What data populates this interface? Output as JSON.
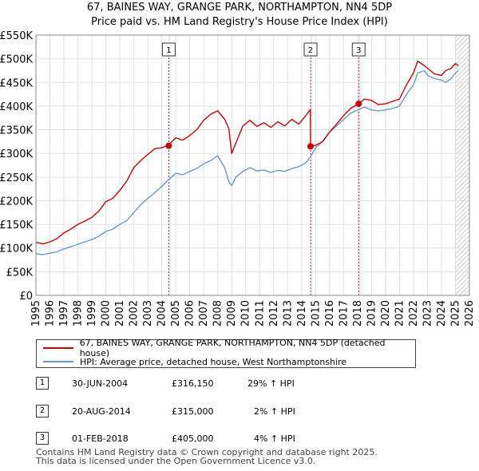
{
  "title_line1": "67, BAINES WAY, GRANGE PARK, NORTHAMPTON, NN4 5DP",
  "title_line2": "Price paid vs. HM Land Registry's House Price Index (HPI)",
  "colors": {
    "property": "#cc0000",
    "hpi": "#6699cc",
    "marker_line": "#cc0000",
    "shade": "#dde6f4",
    "hatch": "#bbbbbb"
  },
  "legend": {
    "property_label": "67, BAINES WAY, GRANGE PARK, NORTHAMPTON, NN4 5DP (detached house)",
    "hpi_label": "HPI: Average price, detached house, West Northamptonshire"
  },
  "sales": [
    {
      "num": "1",
      "date": "30-JUN-2004",
      "price": "£316,150",
      "hpi": "29% ↑ HPI"
    },
    {
      "num": "2",
      "date": "20-AUG-2014",
      "price": "£315,000",
      "hpi": "2% ↑ HPI"
    },
    {
      "num": "3",
      "date": "01-FEB-2018",
      "price": "£405,000",
      "hpi": "4% ↑ HPI"
    }
  ],
  "footer_line1": "Contains HM Land Registry data © Crown copyright and database right 2025.",
  "footer_line2": "This data is licensed under the Open Government Licence v3.0.",
  "chart_data": {
    "type": "line",
    "title": "67, BAINES WAY, GRANGE PARK, NORTHAMPTON, NN4 5DP",
    "subtitle": "Price paid vs. HM Land Registry's House Price Index (HPI)",
    "xlabel": "",
    "ylabel": "",
    "xlim": [
      1995,
      2026
    ],
    "ylim": [
      0,
      550000
    ],
    "x_ticks": [
      1995,
      1996,
      1997,
      1998,
      1999,
      2000,
      2001,
      2002,
      2003,
      2004,
      2005,
      2006,
      2007,
      2008,
      2009,
      2010,
      2011,
      2012,
      2013,
      2014,
      2015,
      2016,
      2017,
      2018,
      2019,
      2020,
      2021,
      2022,
      2023,
      2024,
      2025,
      2026
    ],
    "y_ticks": [
      0,
      50000,
      100000,
      150000,
      200000,
      250000,
      300000,
      350000,
      400000,
      450000,
      500000,
      550000
    ],
    "y_tick_labels": [
      "£0",
      "£50K",
      "£100K",
      "£150K",
      "£200K",
      "£250K",
      "£300K",
      "£350K",
      "£400K",
      "£450K",
      "£500K",
      "£550K"
    ],
    "grid": true,
    "series": [
      {
        "name": "67, BAINES WAY, GRANGE PARK, NORTHAMPTON, NN4 5DP (detached house)",
        "x": [
          1995.0,
          1995.5,
          1996.0,
          1996.5,
          1997.0,
          1997.5,
          1998.0,
          1998.5,
          1999.0,
          1999.5,
          2000.0,
          2000.5,
          2001.0,
          2001.5,
          2002.0,
          2002.5,
          2003.0,
          2003.5,
          2004.0,
          2004.5,
          2005.0,
          2005.5,
          2006.0,
          2006.5,
          2007.0,
          2007.5,
          2008.0,
          2008.5,
          2008.8,
          2009.0,
          2009.3,
          2009.8,
          2010.3,
          2010.8,
          2011.3,
          2011.8,
          2012.3,
          2012.8,
          2013.3,
          2013.8,
          2014.3,
          2014.62,
          2014.64,
          2015.0,
          2015.5,
          2016.0,
          2016.5,
          2017.0,
          2017.5,
          2018.08,
          2018.5,
          2019.0,
          2019.5,
          2020.0,
          2020.5,
          2021.0,
          2021.5,
          2022.0,
          2022.3,
          2022.8,
          2023.0,
          2023.5,
          2024.0,
          2024.3,
          2024.7,
          2025.0,
          2025.2
        ],
        "values": [
          112000,
          109000,
          113000,
          120000,
          132000,
          140000,
          150000,
          157000,
          165000,
          178000,
          198000,
          205000,
          222000,
          242000,
          270000,
          285000,
          298000,
          310000,
          312000,
          318000,
          333000,
          328000,
          338000,
          350000,
          370000,
          383000,
          390000,
          372000,
          352000,
          300000,
          322000,
          358000,
          370000,
          357000,
          365000,
          355000,
          367000,
          358000,
          372000,
          362000,
          380000,
          393000,
          317000,
          317000,
          325000,
          345000,
          362000,
          380000,
          395000,
          405000,
          415000,
          412000,
          403000,
          405000,
          410000,
          415000,
          445000,
          470000,
          495000,
          485000,
          480000,
          468000,
          465000,
          475000,
          480000,
          490000,
          485000
        ]
      },
      {
        "name": "HPI: Average price, detached house, West Northamptonshire",
        "x": [
          1995.0,
          1995.5,
          1996.0,
          1996.5,
          1997.0,
          1997.5,
          1998.0,
          1998.5,
          1999.0,
          1999.5,
          2000.0,
          2000.5,
          2001.0,
          2001.5,
          2002.0,
          2002.5,
          2003.0,
          2003.5,
          2004.0,
          2004.5,
          2005.0,
          2005.5,
          2006.0,
          2006.5,
          2007.0,
          2007.5,
          2008.0,
          2008.5,
          2008.8,
          2009.0,
          2009.3,
          2009.8,
          2010.3,
          2010.8,
          2011.3,
          2011.8,
          2012.3,
          2012.8,
          2013.3,
          2013.8,
          2014.3,
          2014.62,
          2015.0,
          2015.5,
          2016.0,
          2016.5,
          2017.0,
          2017.5,
          2018.08,
          2018.5,
          2019.0,
          2019.5,
          2020.0,
          2020.5,
          2021.0,
          2021.5,
          2022.0,
          2022.3,
          2022.8,
          2023.0,
          2023.5,
          2024.0,
          2024.3,
          2024.7,
          2025.0,
          2025.2
        ],
        "values": [
          88000,
          86000,
          89000,
          92000,
          98000,
          103000,
          108000,
          113000,
          118000,
          125000,
          135000,
          140000,
          150000,
          158000,
          175000,
          192000,
          205000,
          217000,
          230000,
          245000,
          258000,
          255000,
          262000,
          268000,
          278000,
          285000,
          295000,
          270000,
          240000,
          232000,
          250000,
          262000,
          270000,
          263000,
          265000,
          260000,
          264000,
          262000,
          268000,
          272000,
          280000,
          292000,
          312000,
          325000,
          345000,
          358000,
          372000,
          385000,
          393000,
          398000,
          392000,
          390000,
          392000,
          395000,
          400000,
          425000,
          445000,
          470000,
          475000,
          465000,
          458000,
          455000,
          450000,
          458000,
          470000,
          475000
        ]
      }
    ],
    "sale_markers": [
      {
        "label": "1",
        "x": 2004.5,
        "value": 316150
      },
      {
        "label": "2",
        "x": 2014.64,
        "value": 315000
      },
      {
        "label": "3",
        "x": 2018.08,
        "value": 405000
      }
    ],
    "hatched_from": 2025.0
  }
}
